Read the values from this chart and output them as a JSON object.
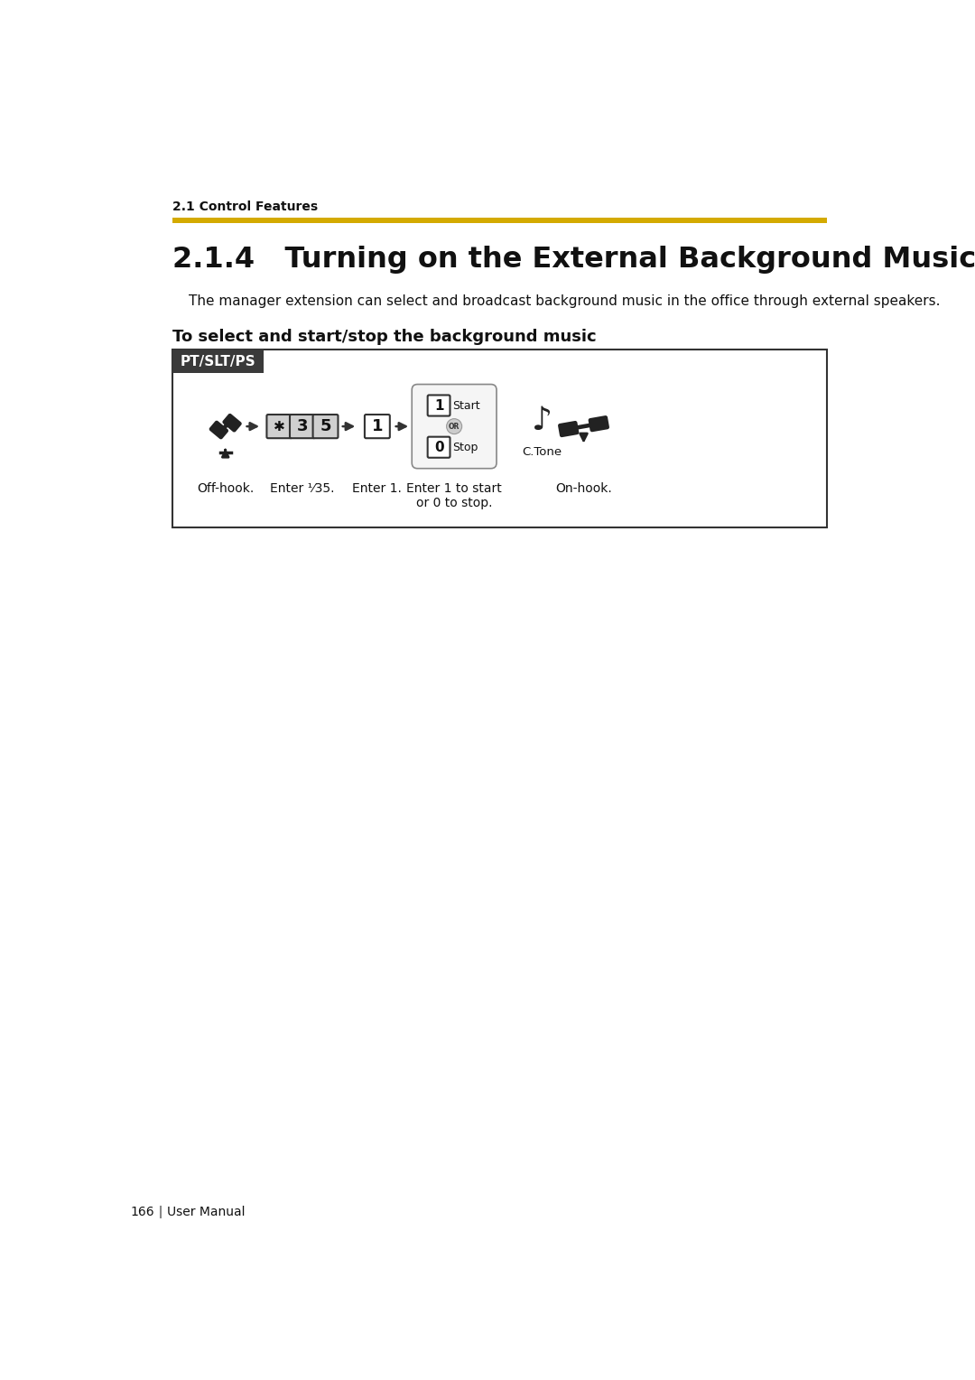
{
  "page_bg": "#ffffff",
  "top_label": "2.1 Control Features",
  "yellow_line_color": "#d4aa00",
  "title_prefix": "2.1.4",
  "title_rest": "  Turning on the External Background Music (BGM)",
  "description": "The manager extension can select and broadcast background music in the office through external speakers.",
  "section_label": "To select and start/stop the background music",
  "pt_slt_ps_label": "PT/SLT/PS",
  "pt_slt_ps_bg": "#3a3a3a",
  "pt_slt_ps_text_color": "#ffffff",
  "box_border_color": "#333333",
  "arrow_color": "#333333",
  "footer_page": "166",
  "footer_text": "User Manual",
  "star_char": "✱",
  "or_char": "OR"
}
